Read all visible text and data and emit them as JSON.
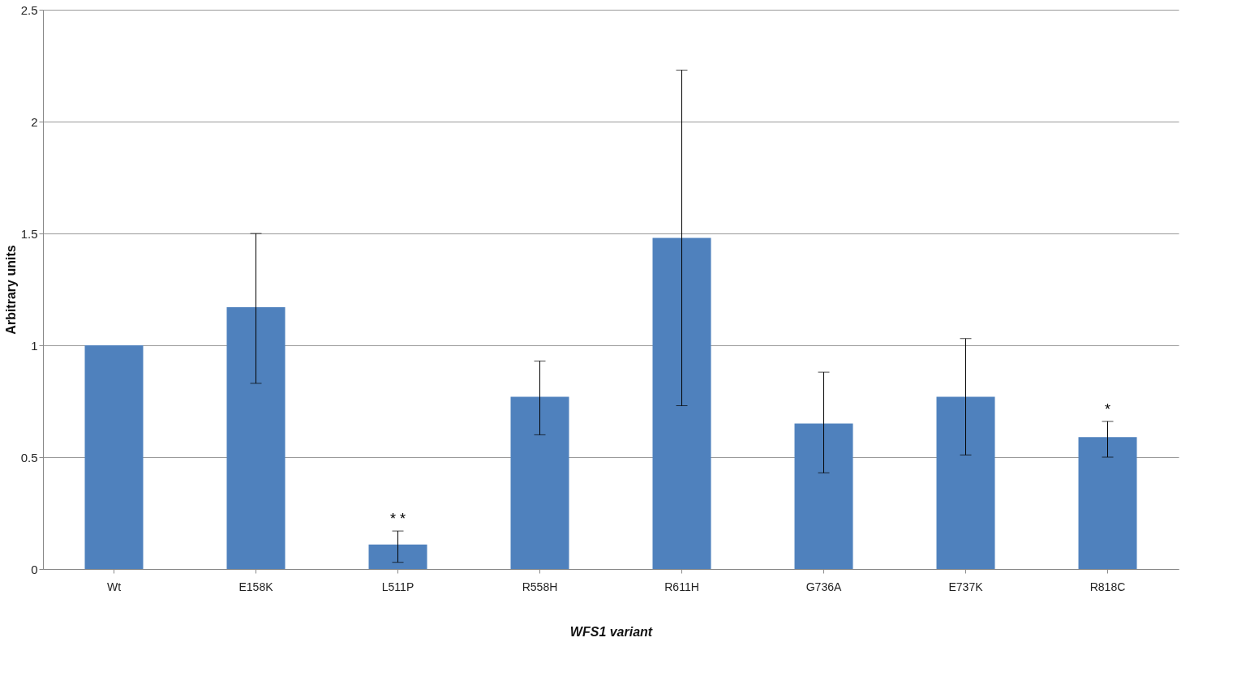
{
  "chart_data": {
    "type": "bar",
    "xlabel": "WFS1 variant",
    "ylabel": "Arbitrary units",
    "categories": [
      "Wt",
      "E158K",
      "L511P",
      "R558H",
      "R611H",
      "G736A",
      "E737K",
      "R818C"
    ],
    "values": [
      1.0,
      1.17,
      0.11,
      0.77,
      1.48,
      0.65,
      0.77,
      0.59
    ],
    "errors": [
      null,
      [
        0.83,
        1.5
      ],
      [
        0.03,
        0.17
      ],
      [
        0.6,
        0.93
      ],
      [
        0.73,
        2.23
      ],
      [
        0.43,
        0.88
      ],
      [
        0.51,
        1.03
      ],
      [
        0.5,
        0.66
      ]
    ],
    "color": "#4f81bd",
    "ylim": [
      0,
      2.5
    ],
    "yticks": [
      0,
      0.5,
      1,
      1.5,
      2,
      2.5
    ],
    "grid": "y",
    "annotations": [
      {
        "text": "* *",
        "x": "L511P",
        "y": 0.17
      },
      {
        "text": "*",
        "x": "R818C",
        "y": 0.66
      }
    ]
  }
}
